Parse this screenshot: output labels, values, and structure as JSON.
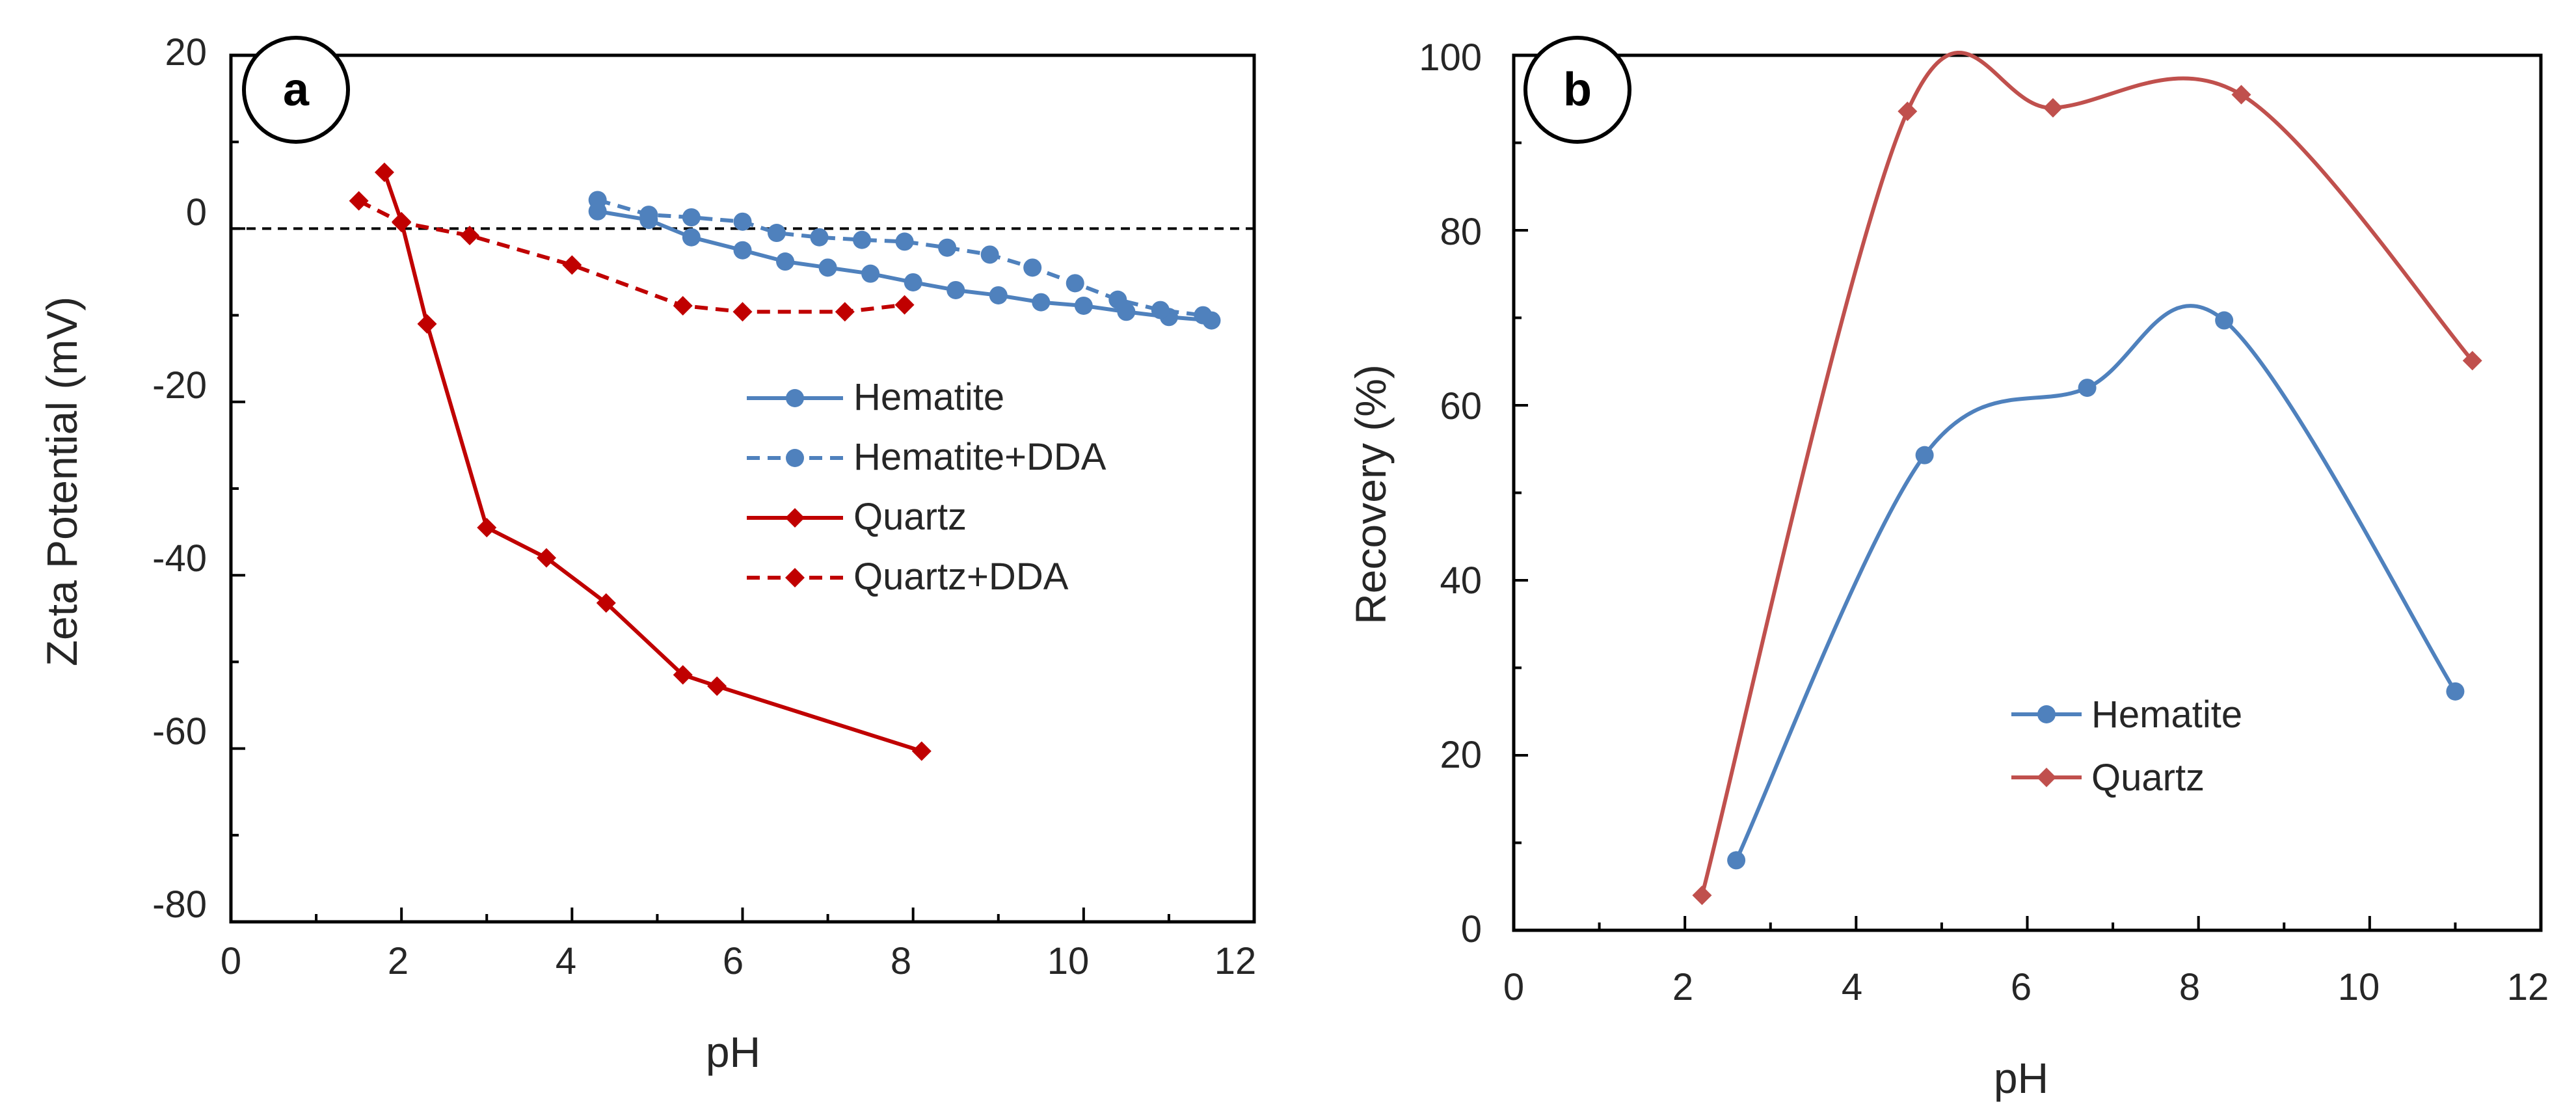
{
  "colors": {
    "blue": "#4F81BD",
    "red": "#C00000",
    "lightred": "#C0504D",
    "axis": "#000000",
    "text": "#262626"
  },
  "chart_data": [
    {
      "panel": "a",
      "type": "line",
      "xlabel": "pH",
      "ylabel": "Zeta Potential (mV)",
      "xlim": [
        0,
        12
      ],
      "ylim": [
        -80,
        20
      ],
      "xticks": [
        0,
        2,
        4,
        6,
        8,
        10,
        12
      ],
      "yticks": [
        -80,
        -60,
        -40,
        -20,
        0,
        20
      ],
      "xtick_labels": [
        "0",
        "2",
        "4",
        "6",
        "8",
        "10",
        "12"
      ],
      "ytick_labels": [
        "-80",
        "-60",
        "-40",
        "-20",
        "0",
        "20"
      ],
      "zero_reference_line": true,
      "legend_position": "center-right",
      "series": [
        {
          "name": "Hematite",
          "color": "#4F81BD",
          "dash": false,
          "marker": "circle",
          "x": [
            4.3,
            4.9,
            5.4,
            6.0,
            6.5,
            7.0,
            7.5,
            8.0,
            8.5,
            9.0,
            9.5,
            10.0,
            10.5,
            11.0,
            11.5
          ],
          "y": [
            2.0,
            1.0,
            -1.0,
            -2.5,
            -3.8,
            -4.5,
            -5.2,
            -6.2,
            -7.1,
            -7.7,
            -8.5,
            -8.9,
            -9.6,
            -10.2,
            -10.6
          ]
        },
        {
          "name": "Hematite+DDA",
          "color": "#4F81BD",
          "dash": true,
          "marker": "circle",
          "x": [
            4.3,
            4.9,
            5.4,
            6.0,
            6.4,
            6.9,
            7.4,
            7.9,
            8.4,
            8.9,
            9.4,
            9.9,
            10.4,
            10.9,
            11.4
          ],
          "y": [
            3.3,
            1.6,
            1.3,
            0.8,
            -0.5,
            -1.0,
            -1.3,
            -1.5,
            -2.2,
            -3.0,
            -4.5,
            -6.3,
            -8.2,
            -9.4,
            -10.0
          ]
        },
        {
          "name": "Quartz",
          "color": "#C00000",
          "dash": false,
          "marker": "diamond",
          "x": [
            1.8,
            2.0,
            2.3,
            3.0,
            3.7,
            4.4,
            5.3,
            5.7,
            8.1
          ],
          "y": [
            6.5,
            0.8,
            -11.0,
            -34.5,
            -38.0,
            -43.2,
            -51.5,
            -52.8,
            -60.3
          ]
        },
        {
          "name": "Quartz+DDA",
          "color": "#C00000",
          "dash": true,
          "marker": "diamond",
          "x": [
            1.5,
            2.0,
            2.8,
            4.0,
            5.3,
            6.0,
            7.2,
            7.9
          ],
          "y": [
            3.2,
            0.7,
            -0.8,
            -4.2,
            -8.9,
            -9.6,
            -9.6,
            -8.8
          ]
        }
      ]
    },
    {
      "panel": "b",
      "type": "line",
      "smooth": true,
      "xlabel": "pH",
      "ylabel": "Recovery (%)",
      "xlim": [
        0,
        12
      ],
      "ylim": [
        0,
        100
      ],
      "xticks": [
        0,
        2,
        4,
        6,
        8,
        10,
        12
      ],
      "yticks": [
        0,
        20,
        40,
        60,
        80,
        100
      ],
      "xtick_labels": [
        "0",
        "2",
        "4",
        "6",
        "8",
        "10",
        "12"
      ],
      "ytick_labels": [
        "0",
        "20",
        "40",
        "60",
        "80",
        "100"
      ],
      "legend_position": "lower-right",
      "series": [
        {
          "name": "Hematite",
          "color": "#4F81BD",
          "marker": "circle",
          "x": [
            2.6,
            4.8,
            6.7,
            8.3,
            11.0
          ],
          "y": [
            8.0,
            54.3,
            62.0,
            69.7,
            27.3
          ]
        },
        {
          "name": "Quartz",
          "color": "#C0504D",
          "marker": "diamond",
          "x": [
            2.2,
            4.6,
            6.3,
            8.5,
            11.2
          ],
          "y": [
            4.0,
            93.6,
            94.0,
            95.5,
            65.1
          ]
        }
      ]
    }
  ]
}
